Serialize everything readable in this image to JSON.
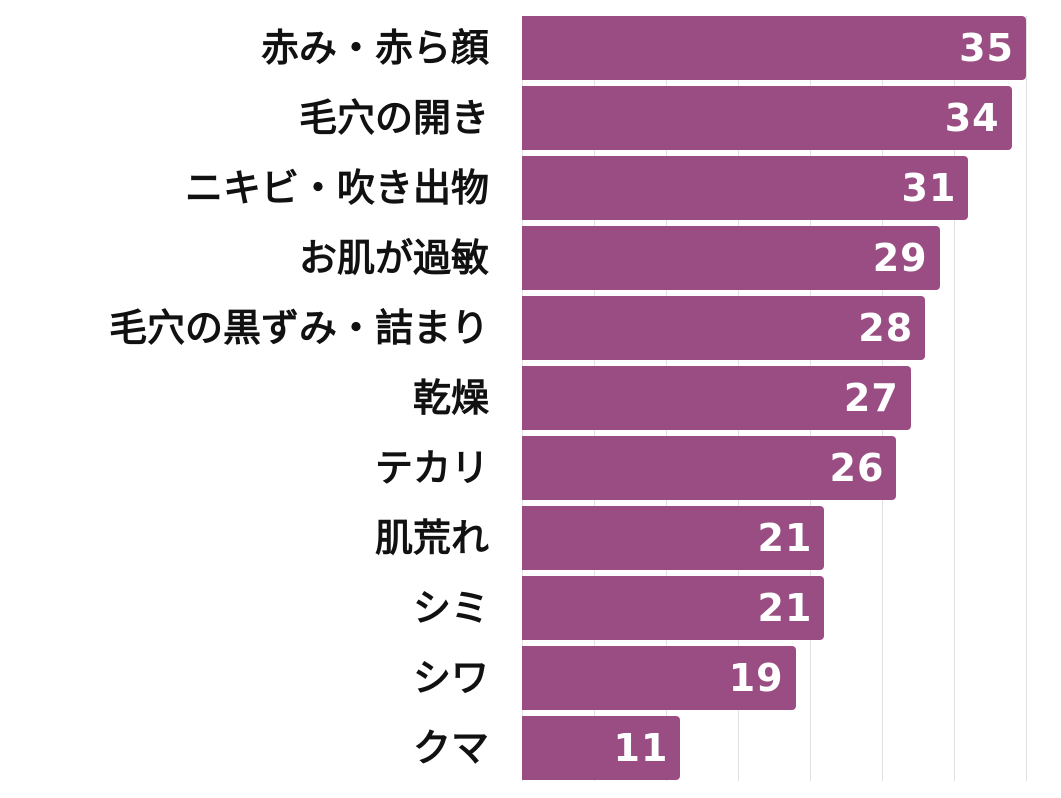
{
  "chart_data": {
    "type": "bar",
    "orientation": "horizontal",
    "title": "",
    "xlabel": "",
    "ylabel": "",
    "categories": [
      "赤み・赤ら顔",
      "毛穴の開き",
      "ニキビ・吹き出物",
      "お肌が過敏",
      "毛穴の黒ずみ・詰まり",
      "乾燥",
      "テカリ",
      "肌荒れ",
      "シミ",
      "シワ",
      "クマ"
    ],
    "values": [
      35,
      34,
      31,
      29,
      28,
      27,
      26,
      21,
      21,
      19,
      11
    ],
    "xlim": [
      0,
      35
    ],
    "grid": true,
    "grid_step": 5,
    "data_labels": true,
    "bar_color": "#9a4d82",
    "legend": null
  }
}
